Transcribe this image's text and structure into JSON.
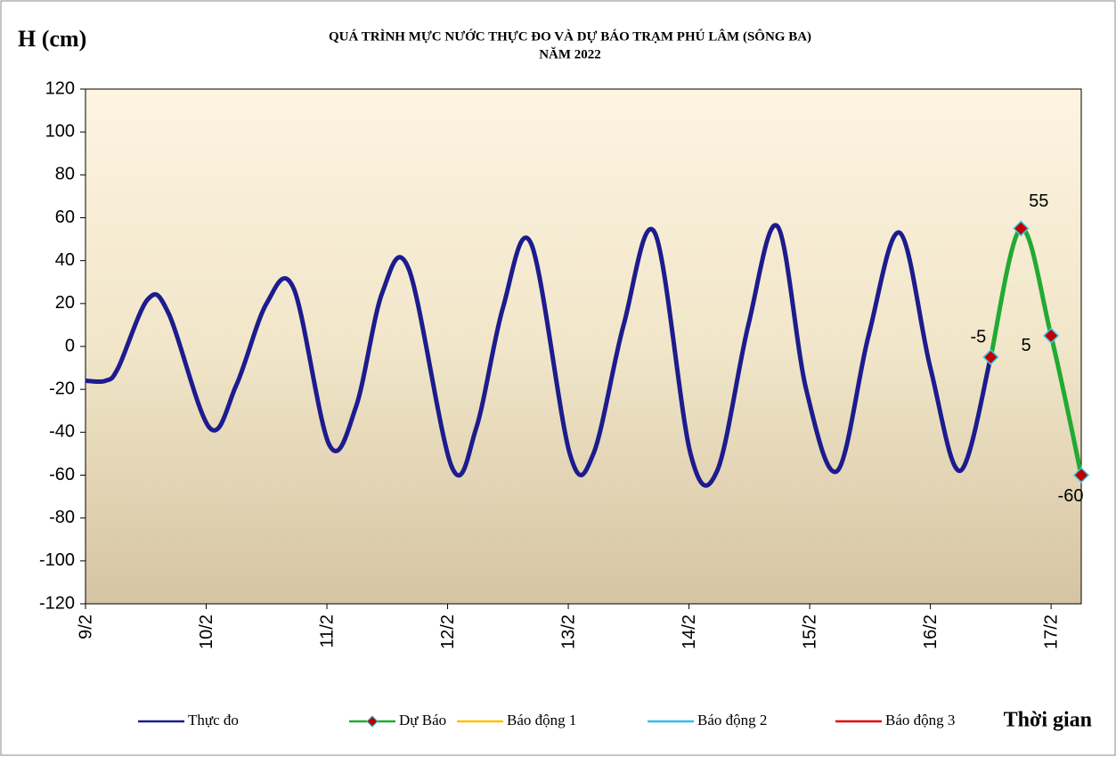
{
  "chart_data": {
    "type": "line",
    "title": "QUÁ TRÌNH MỰC NƯỚC THỰC ĐO VÀ DỰ BÁO TRẠM PHÚ LÂM (SÔNG BA)",
    "subtitle": "NĂM 2022",
    "y_label": "H (cm)",
    "x_label": "Thời gian",
    "xlim": [
      0,
      198
    ],
    "xticks": [
      {
        "value": 0,
        "label": "9/2"
      },
      {
        "value": 24,
        "label": "10/2"
      },
      {
        "value": 48,
        "label": "11/2"
      },
      {
        "value": 72,
        "label": "12/2"
      },
      {
        "value": 96,
        "label": "13/2"
      },
      {
        "value": 120,
        "label": "14/2"
      },
      {
        "value": 144,
        "label": "15/2"
      },
      {
        "value": 168,
        "label": "16/2"
      },
      {
        "value": 192,
        "label": "17/2"
      }
    ],
    "ylim": [
      -120,
      120
    ],
    "yticks": [
      -120,
      -100,
      -80,
      -60,
      -40,
      -20,
      0,
      20,
      40,
      60,
      80,
      100,
      120
    ],
    "series": [
      {
        "name": "Thực đo",
        "color": "#1c1c8e",
        "x": [
          0,
          4,
          6.5,
          12.4,
          16.6,
          24.7,
          30,
          36,
          41.4,
          48.5,
          53.8,
          59,
          64.3,
          72.8,
          77.7,
          83,
          88.6,
          96.3,
          101,
          107,
          113.2,
          120.3,
          125.6,
          131.8,
          137.6,
          143.3,
          149.5,
          155.7,
          161.9,
          168,
          173.9,
          180
        ],
        "values": [
          -16,
          -16,
          -10,
          22,
          15,
          -38,
          -18,
          20,
          27,
          -46,
          -28,
          25,
          36,
          -56,
          -38,
          18,
          48,
          -50,
          -50,
          10,
          53,
          -50,
          -58,
          10,
          56,
          -20,
          -58,
          5,
          53,
          -10,
          -58,
          -5
        ]
      },
      {
        "name": "Dự Báo",
        "color": "#22aa33",
        "marker_color": "#c00000",
        "marker_edge": "#33ccee",
        "data_labels": true,
        "x": [
          180,
          186,
          192,
          198
        ],
        "values": [
          -5,
          55,
          5,
          -60
        ]
      },
      {
        "name": "Báo động 1",
        "color": "#ffc000",
        "x": [],
        "values": []
      },
      {
        "name": "Báo động 2",
        "color": "#33bbee",
        "x": [],
        "values": []
      },
      {
        "name": "Báo động 3",
        "color": "#e00000",
        "x": [],
        "values": []
      }
    ]
  }
}
